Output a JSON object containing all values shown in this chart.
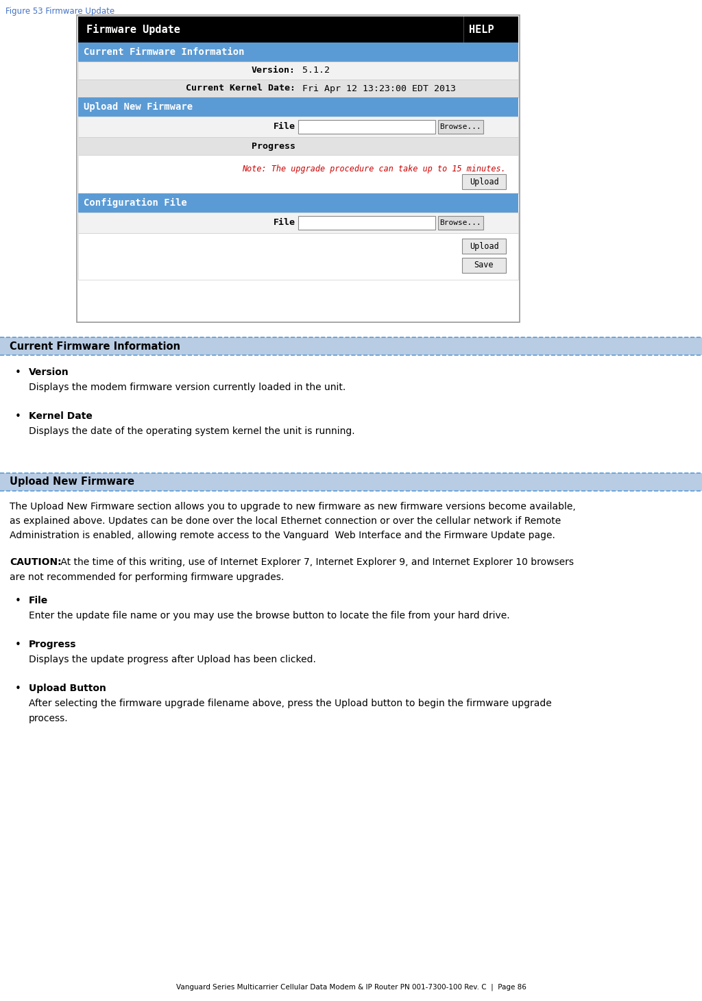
{
  "fig_width": 10.24,
  "fig_height": 14.6,
  "dpi": 100,
  "bg_color": "#ffffff",
  "figure_caption": "Figure 53 Firmware Update",
  "caption_color": "#4472c4",
  "caption_fontsize": 8.5,
  "black_header_color": "#000000",
  "blue_section_color": "#5b9bd5",
  "light_row_color": "#f2f2f2",
  "dark_row_color": "#e2e2e2",
  "white_row_color": "#ffffff",
  "note_color": "#cc0000",
  "body_section_bg": "#b8cce4",
  "body_section_border": "#5b9bd5",
  "footer_text": "Vanguard Series Multicarrier Cellular Data Modem & IP Router PN 001-7300-100 Rev. C  |  Page 86",
  "footer_fontsize": 7.5,
  "ui_font": "monospace",
  "body_font": "DejaVu Sans",
  "section1_header": "Current Firmware Information",
  "section2_header": "Upload New Firmware",
  "ver_bold": "Version:",
  "ver_normal": " 5.1.2",
  "kd_bold": "Current Kernel Date:",
  "kd_normal": " Fri Apr 12 13:23:00 EDT 2013",
  "note_text": "Note: The upgrade procedure can take up to 15 minutes.",
  "upload_para_lines": [
    "The Upload New Firmware section allows you to upgrade to new firmware as new firmware versions become available,",
    "as explained above. Updates can be done over the local Ethernet connection or over the cellular network if Remote",
    "Administration is enabled, allowing remote access to the Vanguard  Web Interface and the Firmware Update page."
  ],
  "caution_label": "CAUTION:",
  "caution_line1": " At the time of this writing, use of Internet Explorer 7, Internet Explorer 9, and Internet Explorer 10 browsers",
  "caution_line2": "are not recommended for performing firmware upgrades.",
  "bullets_section1": [
    {
      "term": "Version",
      "desc": "Displays the modem firmware version currently loaded in the unit."
    },
    {
      "term": "Kernel Date",
      "desc": "Displays the date of the operating system kernel the unit is running."
    }
  ],
  "bullets_section2": [
    {
      "term": "File",
      "desc": "Enter the update file name or you may use the browse button to locate the file from your hard drive."
    },
    {
      "term": "Progress",
      "desc": "Displays the update progress after Upload has been clicked."
    },
    {
      "term": "Upload Button",
      "desc1": "After selecting the firmware upgrade filename above, press the Upload button to begin the firmware upgrade",
      "desc2": "process."
    }
  ]
}
